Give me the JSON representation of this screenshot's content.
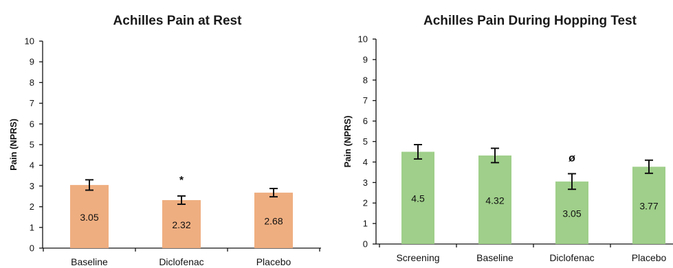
{
  "chart_data": [
    {
      "type": "bar",
      "title": "Achilles Pain at Rest",
      "ylabel": "Pain (NPRS)",
      "xlabel": "",
      "ylim": [
        0,
        10
      ],
      "yticks": [
        "0",
        "1",
        "2",
        "3",
        "4",
        "5",
        "6",
        "7",
        "8",
        "9",
        "10"
      ],
      "categories": [
        "Baseline",
        "Diclofenac",
        "Placebo"
      ],
      "values": [
        3.05,
        2.32,
        2.68
      ],
      "value_labels": [
        "3.05",
        "2.32",
        "2.68"
      ],
      "error": [
        0.25,
        0.2,
        0.2
      ],
      "annotations": [
        "",
        "*",
        ""
      ],
      "bar_color": "#EFAE80",
      "grid": false
    },
    {
      "type": "bar",
      "title": "Achilles Pain During Hopping Test",
      "ylabel": "Pain (NPRS)",
      "xlabel": "",
      "ylim": [
        0,
        10
      ],
      "yticks": [
        "0",
        "1",
        "2",
        "3",
        "4",
        "5",
        "6",
        "7",
        "8",
        "9",
        "10"
      ],
      "categories": [
        "Screening",
        "Baseline",
        "Diclofenac",
        "Placebo"
      ],
      "values": [
        4.5,
        4.32,
        3.05,
        3.77
      ],
      "value_labels": [
        "4.5",
        "4.32",
        "3.05",
        "3.77"
      ],
      "error": [
        0.35,
        0.35,
        0.38,
        0.32
      ],
      "annotations": [
        "",
        "",
        "ø",
        ""
      ],
      "bar_color": "#9FCF8A",
      "grid": false
    }
  ]
}
